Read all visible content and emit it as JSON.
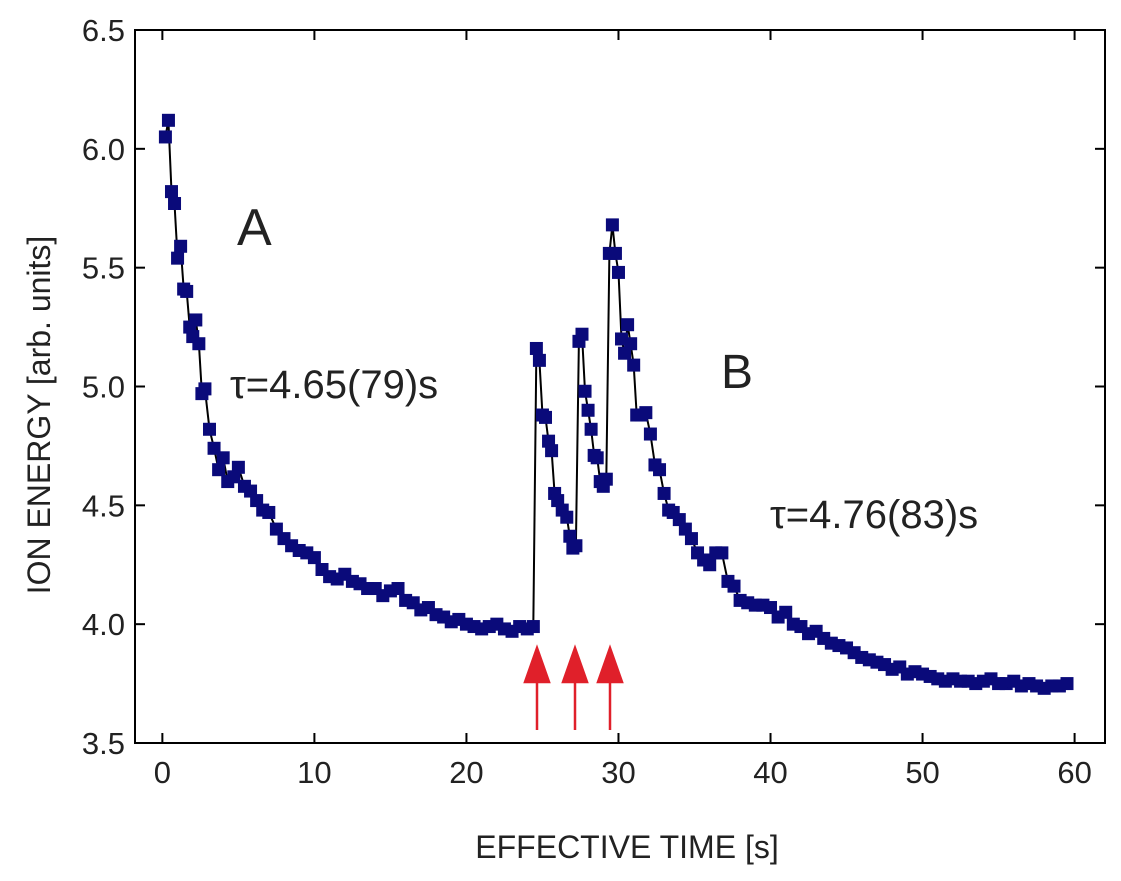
{
  "chart_data": {
    "type": "line",
    "xlabel": "EFFECTIVE TIME [s]",
    "ylabel": "ION ENERGY [arb. units]",
    "annotations": [
      "A",
      "τ=4.65(79)s",
      "B",
      "τ=4.76(83)s"
    ],
    "xlim": [
      -1.8,
      62
    ],
    "ylim": [
      3.5,
      6.5
    ],
    "xticks": [
      0,
      10,
      20,
      30,
      40,
      50,
      60
    ],
    "yticks": [
      3.5,
      {
        "value": 4,
        "label": "4.0"
      },
      4.5,
      {
        "value": 5,
        "label": "5.0"
      },
      5.5,
      {
        "value": 6,
        "label": "6.0"
      },
      6.5
    ],
    "x": [
      0.2,
      0.4,
      0.6,
      0.8,
      1.0,
      1.2,
      1.4,
      1.6,
      1.8,
      2.0,
      2.2,
      2.4,
      2.6,
      2.8,
      3.1,
      3.4,
      3.7,
      4.0,
      4.3,
      4.7,
      5.0,
      5.4,
      5.8,
      6.2,
      6.6,
      7.0,
      7.5,
      8.0,
      8.5,
      9.0,
      9.5,
      10.0,
      10.5,
      11.0,
      11.5,
      12.0,
      12.5,
      13.0,
      13.5,
      14.0,
      14.5,
      15.0,
      15.5,
      16.0,
      16.5,
      17.0,
      17.5,
      18.0,
      18.5,
      19.0,
      19.5,
      20.0,
      20.5,
      21.0,
      21.5,
      22.0,
      22.5,
      23.0,
      23.5,
      24.0,
      24.4,
      24.6,
      24.8,
      25.0,
      25.2,
      25.4,
      25.6,
      25.8,
      26.0,
      26.3,
      26.6,
      26.8,
      27.0,
      27.2,
      27.4,
      27.6,
      27.8,
      28.0,
      28.2,
      28.4,
      28.6,
      28.8,
      29.0,
      29.2,
      29.4,
      29.6,
      29.8,
      30.0,
      30.2,
      30.4,
      30.6,
      30.8,
      31.0,
      31.2,
      31.5,
      31.8,
      32.1,
      32.4,
      32.7,
      33.0,
      33.3,
      33.6,
      34.0,
      34.4,
      34.8,
      35.2,
      35.6,
      36.0,
      36.4,
      36.8,
      37.2,
      37.6,
      38.0,
      38.5,
      39.0,
      39.5,
      40.0,
      40.5,
      41.0,
      41.5,
      42.0,
      42.5,
      43.0,
      43.5,
      44.0,
      44.5,
      45.0,
      45.5,
      46.0,
      46.5,
      47.0,
      47.5,
      48.0,
      48.5,
      49.0,
      49.5,
      50.0,
      50.5,
      51.0,
      51.5,
      52.0,
      52.5,
      53.0,
      53.5,
      54.0,
      54.5,
      55.0,
      55.5,
      56.0,
      56.5,
      57.0,
      57.5,
      58.0,
      58.5,
      59.0,
      59.5
    ],
    "series": [
      {
        "color": "#0a0a7a",
        "line_color": "#000000",
        "values": [
          6.05,
          6.12,
          5.82,
          5.77,
          5.54,
          5.59,
          5.41,
          5.4,
          5.25,
          5.21,
          5.28,
          5.18,
          4.97,
          4.99,
          4.82,
          4.74,
          4.65,
          4.7,
          4.6,
          4.62,
          4.66,
          4.58,
          4.56,
          4.52,
          4.48,
          4.47,
          4.4,
          4.36,
          4.33,
          4.31,
          4.3,
          4.28,
          4.23,
          4.2,
          4.19,
          4.21,
          4.18,
          4.17,
          4.15,
          4.15,
          4.12,
          4.14,
          4.15,
          4.1,
          4.09,
          4.06,
          4.07,
          4.04,
          4.03,
          4.01,
          4.02,
          4.0,
          3.99,
          3.98,
          3.99,
          4.0,
          3.98,
          3.97,
          3.99,
          3.98,
          3.99,
          5.16,
          5.11,
          4.88,
          4.87,
          4.77,
          4.73,
          4.55,
          4.52,
          4.48,
          4.45,
          4.37,
          4.32,
          4.33,
          5.19,
          5.22,
          4.98,
          4.9,
          4.82,
          4.71,
          4.7,
          4.6,
          4.58,
          4.61,
          5.56,
          5.68,
          5.56,
          5.48,
          5.2,
          5.14,
          5.26,
          5.18,
          5.09,
          4.88,
          4.88,
          4.89,
          4.8,
          4.67,
          4.65,
          4.55,
          4.48,
          4.47,
          4.44,
          4.4,
          4.36,
          4.3,
          4.27,
          4.25,
          4.3,
          4.3,
          4.18,
          4.16,
          4.1,
          4.09,
          4.08,
          4.08,
          4.07,
          4.03,
          4.05,
          4.0,
          3.99,
          3.96,
          3.97,
          3.94,
          3.92,
          3.91,
          3.9,
          3.88,
          3.86,
          3.85,
          3.84,
          3.83,
          3.81,
          3.82,
          3.79,
          3.8,
          3.79,
          3.78,
          3.77,
          3.76,
          3.77,
          3.76,
          3.76,
          3.75,
          3.76,
          3.77,
          3.75,
          3.75,
          3.76,
          3.74,
          3.75,
          3.74,
          3.73,
          3.74,
          3.74,
          3.75
        ]
      }
    ]
  }
}
